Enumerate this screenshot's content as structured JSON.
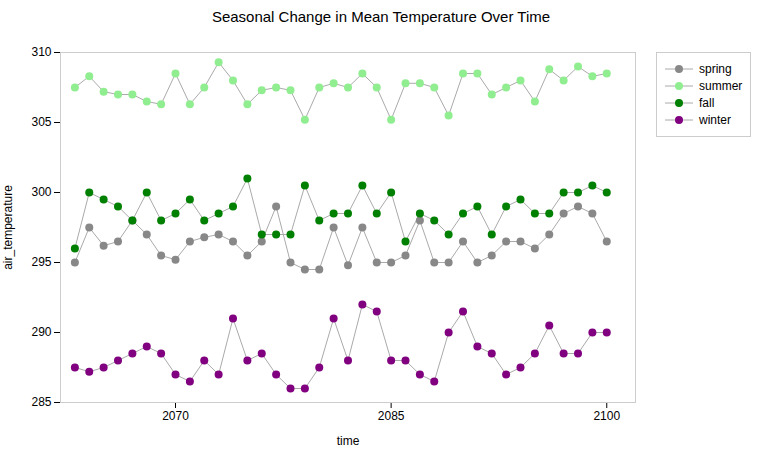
{
  "chart_data": {
    "type": "line",
    "title": "Seasonal Change in Mean Temperature Over Time",
    "xlabel": "time",
    "ylabel": "air_temperature",
    "color": "#aaaaaa",
    "marker": "circle",
    "legend": "right",
    "grid": false,
    "xlim": [
      2062,
      2102
    ],
    "ylim": [
      285,
      310
    ],
    "xticks": [
      2070,
      2085,
      2100
    ],
    "yticks": [
      285,
      290,
      295,
      300,
      305,
      310
    ],
    "x": [
      2063,
      2064,
      2065,
      2066,
      2067,
      2068,
      2069,
      2070,
      2071,
      2072,
      2073,
      2074,
      2075,
      2076,
      2077,
      2078,
      2079,
      2080,
      2081,
      2082,
      2083,
      2084,
      2085,
      2086,
      2087,
      2088,
      2089,
      2090,
      2091,
      2092,
      2093,
      2094,
      2095,
      2096,
      2097,
      2098,
      2099,
      2100
    ],
    "series": [
      {
        "name": "spring",
        "color": "#888888",
        "values": [
          295.0,
          297.5,
          296.2,
          296.5,
          298.0,
          297.0,
          295.5,
          295.2,
          296.5,
          296.8,
          297.0,
          296.5,
          295.5,
          296.5,
          299.0,
          295.0,
          294.5,
          294.5,
          297.5,
          294.8,
          297.5,
          295.0,
          295.0,
          295.5,
          298.0,
          295.0,
          295.0,
          296.5,
          295.0,
          295.5,
          296.5,
          296.5,
          296.0,
          297.0,
          298.5,
          299.0,
          298.5,
          296.5
        ]
      },
      {
        "name": "summer",
        "color": "#90EE90",
        "values": [
          307.5,
          308.3,
          307.2,
          307.0,
          307.0,
          306.5,
          306.3,
          308.5,
          306.3,
          307.5,
          309.3,
          308.0,
          306.3,
          307.3,
          307.5,
          307.3,
          305.2,
          307.5,
          307.8,
          307.5,
          308.5,
          307.5,
          305.2,
          307.8,
          307.8,
          307.5,
          305.5,
          308.5,
          308.5,
          307.0,
          307.5,
          308.0,
          306.5,
          308.8,
          308.0,
          309.0,
          308.3,
          308.5
        ]
      },
      {
        "name": "fall",
        "color": "#008000",
        "values": [
          296.0,
          300.0,
          299.5,
          299.0,
          298.0,
          300.0,
          298.0,
          298.5,
          299.5,
          298.0,
          298.5,
          299.0,
          301.0,
          297.0,
          297.0,
          297.0,
          300.5,
          298.0,
          298.5,
          298.5,
          300.5,
          298.5,
          300.0,
          296.5,
          298.5,
          298.0,
          297.0,
          298.5,
          299.0,
          297.0,
          299.0,
          299.5,
          298.5,
          298.5,
          300.0,
          300.0,
          300.5,
          300.0
        ]
      },
      {
        "name": "winter",
        "color": "#800080",
        "values": [
          287.5,
          287.2,
          287.5,
          288.0,
          288.5,
          289.0,
          288.5,
          287.0,
          286.5,
          288.0,
          287.0,
          291.0,
          288.0,
          288.5,
          287.0,
          286.0,
          286.0,
          287.5,
          291.0,
          288.0,
          292.0,
          291.5,
          288.0,
          288.0,
          287.0,
          286.5,
          290.0,
          291.5,
          289.0,
          288.5,
          287.0,
          287.5,
          288.5,
          290.5,
          288.5,
          288.5,
          290.0,
          290.0
        ]
      }
    ]
  }
}
